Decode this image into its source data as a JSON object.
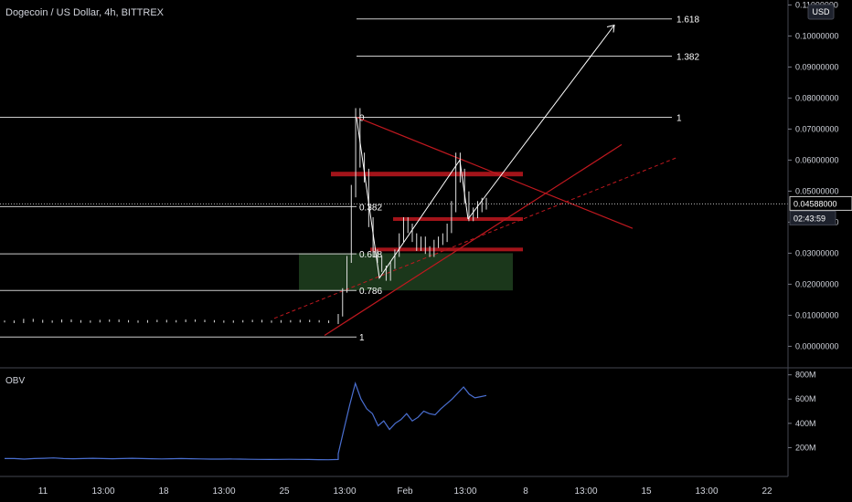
{
  "header": {
    "title": "Dogecoin / US Dollar, 4h, BITTREX"
  },
  "currency_badge": "USD",
  "price_readout": {
    "price": "0.04588000",
    "countdown": "02:43:59"
  },
  "obv_label": "OBV",
  "colors": {
    "background": "#000000",
    "candle": "#e0e0e0",
    "trendline": "#c0181f",
    "fib_line": "#cccccc",
    "zone": "#1e3d1e",
    "obv_line": "#4a6fd1",
    "arrow": "#ffffff"
  },
  "chart_data": [
    {
      "type": "line",
      "title": "Dogecoin / US Dollar, 4h, BITTREX",
      "ylim": [
        -0.004,
        0.111
      ],
      "yticks": [
        "0.11000000",
        "0.10000000",
        "0.09000000",
        "0.08000000",
        "0.07000000",
        "0.06000000",
        "0.05000000",
        "0.04000000",
        "0.03000000",
        "0.02000000",
        "0.01000000",
        "0.00000000"
      ],
      "ytick_values": [
        0.11,
        0.1,
        0.09,
        0.08,
        0.07,
        0.06,
        0.05,
        0.04,
        0.03,
        0.02,
        0.01,
        0.0
      ],
      "xticks": [
        "11",
        "13:00",
        "18",
        "13:00",
        "25",
        "13:00",
        "Feb",
        "13:00",
        "8",
        "13:00",
        "15",
        "13:00",
        "22"
      ],
      "fib_levels": [
        {
          "label": "1.618",
          "value": 0.1055
        },
        {
          "label": "1.382",
          "value": 0.0935
        },
        {
          "label": "1",
          "value": 0.0738
        },
        {
          "label": "0",
          "value": 0.0738
        },
        {
          "label": "0.382",
          "value": 0.045
        },
        {
          "label": "0.618",
          "value": 0.0298
        },
        {
          "label": "0.786",
          "value": 0.018
        },
        {
          "label": "1",
          "value": 0.003
        }
      ],
      "price_series": [
        0.008,
        0.0078,
        0.0085,
        0.0082,
        0.0079,
        0.008,
        0.0083,
        0.0081,
        0.0079,
        0.008,
        0.0082,
        0.0083,
        0.0081,
        0.008,
        0.0079,
        0.0081,
        0.0082,
        0.008,
        0.0081,
        0.0083,
        0.0082,
        0.0081,
        0.008,
        0.0079,
        0.008,
        0.0081,
        0.0082,
        0.008,
        0.0079,
        0.0081,
        0.008,
        0.0082,
        0.0081,
        0.008,
        0.0078,
        0.0075,
        0.01,
        0.018,
        0.028,
        0.05,
        0.0738,
        0.06,
        0.055,
        0.04,
        0.03,
        0.028,
        0.025,
        0.022,
        0.026,
        0.03,
        0.035,
        0.04,
        0.038,
        0.035,
        0.032,
        0.034,
        0.031,
        0.03,
        0.033,
        0.034,
        0.035,
        0.038,
        0.045,
        0.06,
        0.055,
        0.048,
        0.042,
        0.043,
        0.045,
        0.046,
        0.0459
      ]
    },
    {
      "type": "line",
      "title": "OBV",
      "yticks": [
        "800M",
        "600M",
        "400M",
        "200M"
      ],
      "ytick_values": [
        800,
        600,
        400,
        200
      ],
      "ylim": [
        0,
        820
      ],
      "series": [
        {
          "name": "OBV",
          "values": [
            110,
            110,
            105,
            110,
            112,
            115,
            110,
            108,
            110,
            112,
            110,
            108,
            110,
            112,
            110,
            108,
            107,
            108,
            110,
            108,
            107,
            105,
            105,
            106,
            105,
            104,
            103,
            102,
            103,
            104,
            103,
            102,
            101,
            100,
            102,
            150,
            350,
            550,
            730,
            600,
            520,
            480,
            380,
            420,
            350,
            400,
            430,
            480,
            420,
            450,
            500,
            480,
            470,
            520,
            560,
            600,
            650,
            700,
            640,
            610,
            620,
            630
          ]
        }
      ]
    }
  ]
}
